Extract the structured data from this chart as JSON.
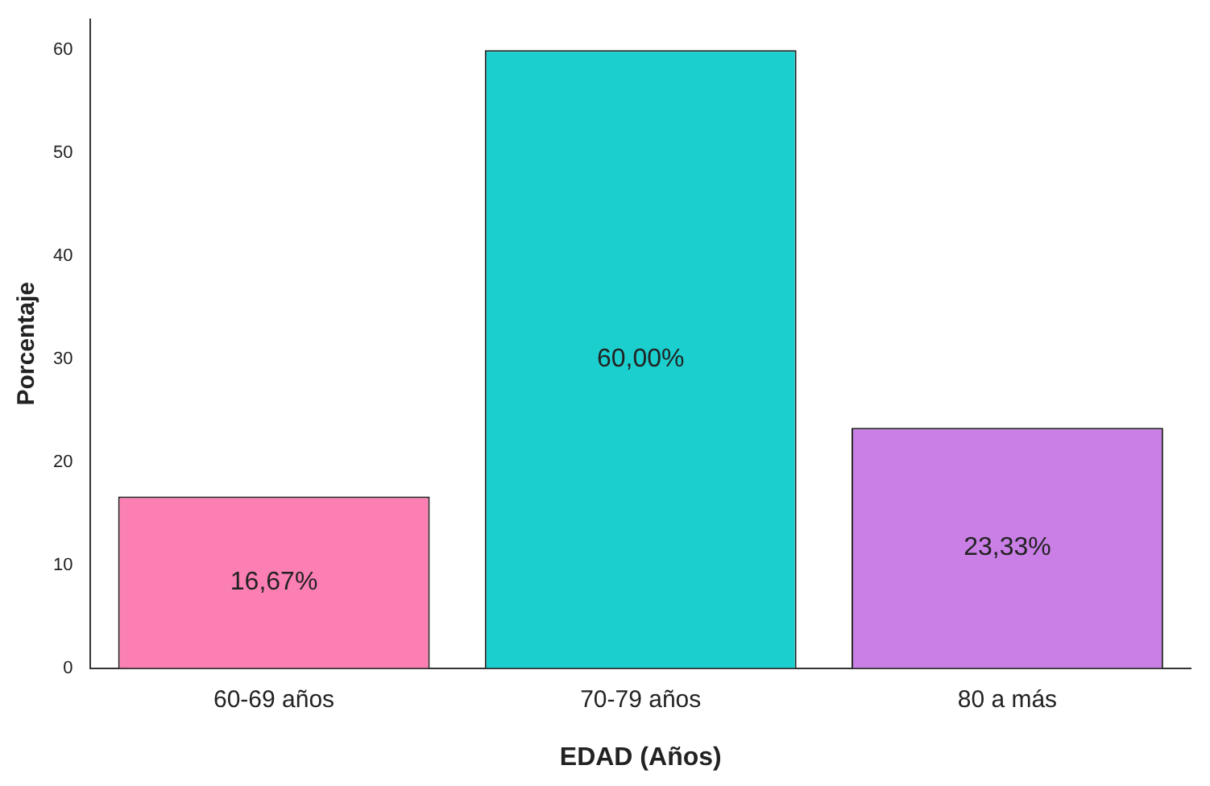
{
  "chart_data": {
    "type": "bar",
    "xlabel": "EDAD (Años)",
    "ylabel": "Porcentaje",
    "categories": [
      "60-69 años",
      "70-79 años",
      "80 a más"
    ],
    "values": [
      16.67,
      60,
      23.33
    ],
    "colors": [
      "#fc7fb3",
      "#1ccfcf",
      "#c97fe6"
    ],
    "value_labels": [
      "16,67%",
      "60,00%",
      "23,33%"
    ],
    "ylim": [
      0,
      63
    ],
    "yticks": [
      0,
      10,
      20,
      30,
      40,
      50,
      60
    ],
    "grid": false,
    "legend": false
  }
}
